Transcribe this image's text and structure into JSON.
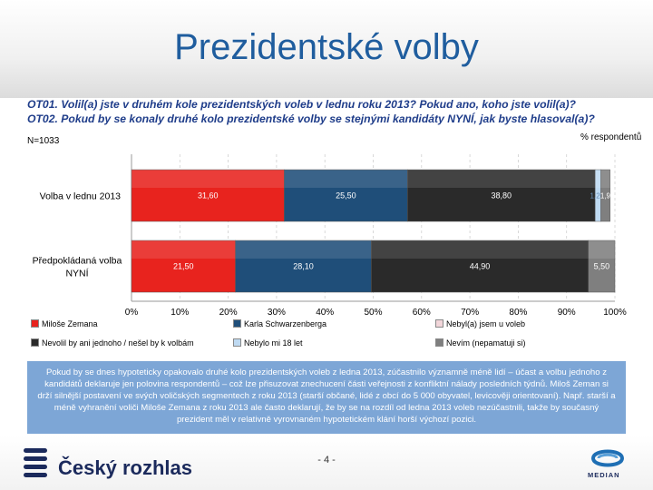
{
  "page": {
    "title": "Prezidentské volby",
    "q1": "OT01. Volil(a)  jste v druhém kole prezidentských voleb v lednu roku 2013? Pokud ano, koho jste volil(a)?",
    "q2": "OT02. Pokud by se konaly druhé kolo prezidentské volby se stejnými kandidáty NYNÍ, jak byste hlasoval(a)?",
    "sample": "N=1033",
    "unit": "% respondentů",
    "note": "Pokud by se dnes hypoteticky opakovalo druhé kolo prezidentských voleb z ledna 2013, zúčastnilo významně méně lidí – účast a volbu jednoho z kandidátů deklaruje jen polovina respondentů – což lze přisuzovat znechucení části veřejnosti z konfliktní nálady posledních týdnů. Miloš Zeman si drží silnější postavení ve svých voličských segmentech z roku 2013 (starší občané, lidé z obcí do 5 000 obyvatel, levicověji orientovaní). Např. starší a méně vyhranění voliči Miloše Zemana z roku 2013 ale často deklarují, že by se na rozdíl od ledna 2013 voleb nezúčastnili, takže by současný prezident měl v relativně vyrovnaném hypotetickém klání horší výchozí pozici.",
    "page_number": "- 4 -",
    "logo_left": "Český rozhlas",
    "logo_right": "MEDIAN"
  },
  "chart_data": {
    "type": "bar",
    "orientation": "horizontal",
    "stacked": true,
    "categories": [
      "Volba v lednu 2013",
      "Předpokládaná volba NYNÍ"
    ],
    "series": [
      {
        "name": "Miloše Zemana",
        "color": "#e8231e",
        "values": [
          31.6,
          21.5
        ],
        "labels": [
          "31,60",
          "21,50"
        ]
      },
      {
        "name": "Karla Schwarzenberga",
        "color": "#1f4e79",
        "values": [
          25.5,
          28.1
        ],
        "labels": [
          "25,50",
          "28,10"
        ]
      },
      {
        "name": "Nevolil by ani jednoho / nešel by k volbám",
        "color": "#2a2a2a",
        "values": [
          38.8,
          44.9
        ],
        "labels": [
          "38,80",
          "44,90"
        ]
      },
      {
        "name": "Nebyl(a) jsem u voleb",
        "color": "#f2d6da",
        "values": [
          0.0,
          0.0
        ],
        "labels": [
          "",
          ""
        ]
      },
      {
        "name": "Nebylo mi 18 let",
        "color": "#bfdaf2",
        "values": [
          1.2,
          0.0
        ],
        "labels": [
          "1,20",
          ""
        ]
      },
      {
        "name": "Nevím (nepamatuji si)",
        "color": "#7f7f7f",
        "values": [
          1.9,
          5.5
        ],
        "labels": [
          "1,90",
          "5,50"
        ]
      }
    ],
    "legend_order": [
      0,
      1,
      3,
      2,
      4,
      5
    ],
    "xlim": [
      0,
      100
    ],
    "xticks": [
      "0%",
      "10%",
      "20%",
      "30%",
      "40%",
      "50%",
      "60%",
      "70%",
      "80%",
      "90%",
      "100%"
    ],
    "grid": true,
    "legend_position": "bottom"
  }
}
